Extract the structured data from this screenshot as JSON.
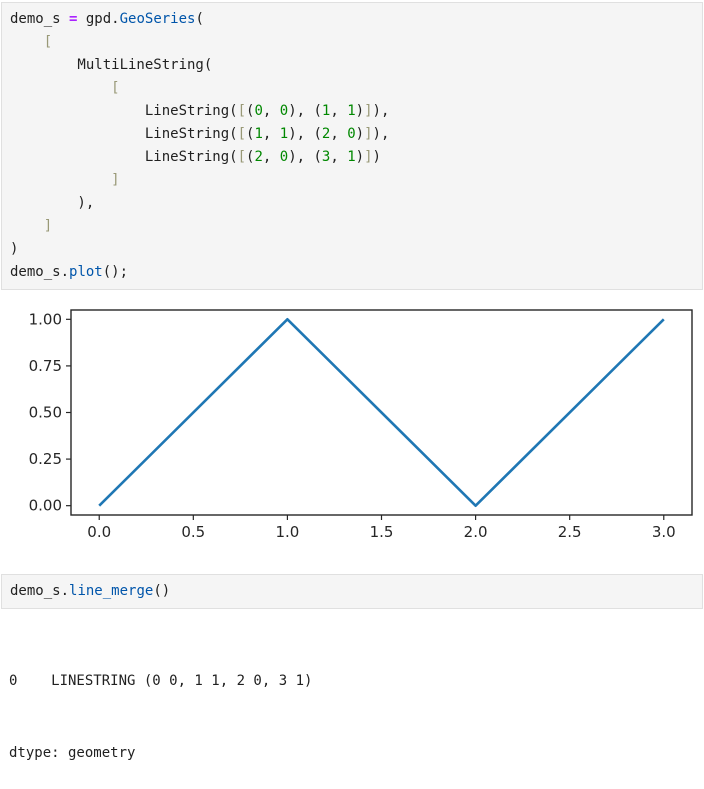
{
  "colors": {
    "cell_bg": "#f5f5f5",
    "cell_border": "#e0e0e0",
    "code_default": "#212121",
    "operator": "#aa22ff",
    "property": "#0055aa",
    "number": "#008800",
    "bracket": "#999977",
    "plot_line": "#1f77b4",
    "axis": "#262626"
  },
  "cells": [
    {
      "name": "geoseries-definition-cell",
      "lines": [
        [
          {
            "t": "demo_s ",
            "c": "v"
          },
          {
            "t": "=",
            "c": "o"
          },
          {
            "t": " gpd.",
            "c": "v"
          },
          {
            "t": "GeoSeries",
            "c": "p"
          },
          {
            "t": "(",
            "c": "v"
          }
        ],
        [
          {
            "t": "    ",
            "c": "v"
          },
          {
            "t": "[",
            "c": "b"
          }
        ],
        [
          {
            "t": "        MultiLineString(",
            "c": "v"
          }
        ],
        [
          {
            "t": "            ",
            "c": "v"
          },
          {
            "t": "[",
            "c": "b"
          }
        ],
        [
          {
            "t": "                LineString(",
            "c": "v"
          },
          {
            "t": "[",
            "c": "b"
          },
          {
            "t": "(",
            "c": "v"
          },
          {
            "t": "0",
            "c": "n"
          },
          {
            "t": ", ",
            "c": "v"
          },
          {
            "t": "0",
            "c": "n"
          },
          {
            "t": "), (",
            "c": "v"
          },
          {
            "t": "1",
            "c": "n"
          },
          {
            "t": ", ",
            "c": "v"
          },
          {
            "t": "1",
            "c": "n"
          },
          {
            "t": ")",
            "c": "v"
          },
          {
            "t": "]",
            "c": "b"
          },
          {
            "t": "),",
            "c": "v"
          }
        ],
        [
          {
            "t": "                LineString(",
            "c": "v"
          },
          {
            "t": "[",
            "c": "b"
          },
          {
            "t": "(",
            "c": "v"
          },
          {
            "t": "1",
            "c": "n"
          },
          {
            "t": ", ",
            "c": "v"
          },
          {
            "t": "1",
            "c": "n"
          },
          {
            "t": "), (",
            "c": "v"
          },
          {
            "t": "2",
            "c": "n"
          },
          {
            "t": ", ",
            "c": "v"
          },
          {
            "t": "0",
            "c": "n"
          },
          {
            "t": ")",
            "c": "v"
          },
          {
            "t": "]",
            "c": "b"
          },
          {
            "t": "),",
            "c": "v"
          }
        ],
        [
          {
            "t": "                LineString(",
            "c": "v"
          },
          {
            "t": "[",
            "c": "b"
          },
          {
            "t": "(",
            "c": "v"
          },
          {
            "t": "2",
            "c": "n"
          },
          {
            "t": ", ",
            "c": "v"
          },
          {
            "t": "0",
            "c": "n"
          },
          {
            "t": "), (",
            "c": "v"
          },
          {
            "t": "3",
            "c": "n"
          },
          {
            "t": ", ",
            "c": "v"
          },
          {
            "t": "1",
            "c": "n"
          },
          {
            "t": ")",
            "c": "v"
          },
          {
            "t": "]",
            "c": "b"
          },
          {
            "t": ")",
            "c": "v"
          }
        ],
        [
          {
            "t": "            ",
            "c": "v"
          },
          {
            "t": "]",
            "c": "b"
          }
        ],
        [
          {
            "t": "        ),",
            "c": "v"
          }
        ],
        [
          {
            "t": "    ",
            "c": "v"
          },
          {
            "t": "]",
            "c": "b"
          }
        ],
        [
          {
            "t": ")",
            "c": "v"
          }
        ],
        [
          {
            "t": "demo_s.",
            "c": "v"
          },
          {
            "t": "plot",
            "c": "p"
          },
          {
            "t": "();",
            "c": "v"
          }
        ]
      ]
    },
    {
      "name": "line-merge-cell",
      "lines": [
        [
          {
            "t": "demo_s.",
            "c": "v"
          },
          {
            "t": "line_merge",
            "c": "p"
          },
          {
            "t": "()",
            "c": "v"
          }
        ]
      ]
    }
  ],
  "chart_data": {
    "type": "line",
    "title": "",
    "xlabel": "",
    "ylabel": "",
    "grid": false,
    "legend": null,
    "xlim": [
      -0.15,
      3.15
    ],
    "ylim": [
      -0.05,
      1.05
    ],
    "xticks": [
      0.0,
      0.5,
      1.0,
      1.5,
      2.0,
      2.5,
      3.0
    ],
    "yticks": [
      0.0,
      0.25,
      0.5,
      0.75,
      1.0
    ],
    "xtick_labels": [
      "0.0",
      "0.5",
      "1.0",
      "1.5",
      "2.0",
      "2.5",
      "3.0"
    ],
    "ytick_labels": [
      "0.00",
      "0.25",
      "0.50",
      "0.75",
      "1.00"
    ],
    "series": [
      {
        "name": "multilinestring-plot",
        "x": [
          0,
          1,
          2,
          3
        ],
        "y": [
          0,
          1,
          0,
          1
        ],
        "color": "#1f77b4",
        "linewidth": 2.6
      }
    ]
  },
  "text_output": {
    "lines": [
      "0    LINESTRING (0 0, 1 1, 2 0, 3 1)",
      "dtype: geometry"
    ]
  }
}
